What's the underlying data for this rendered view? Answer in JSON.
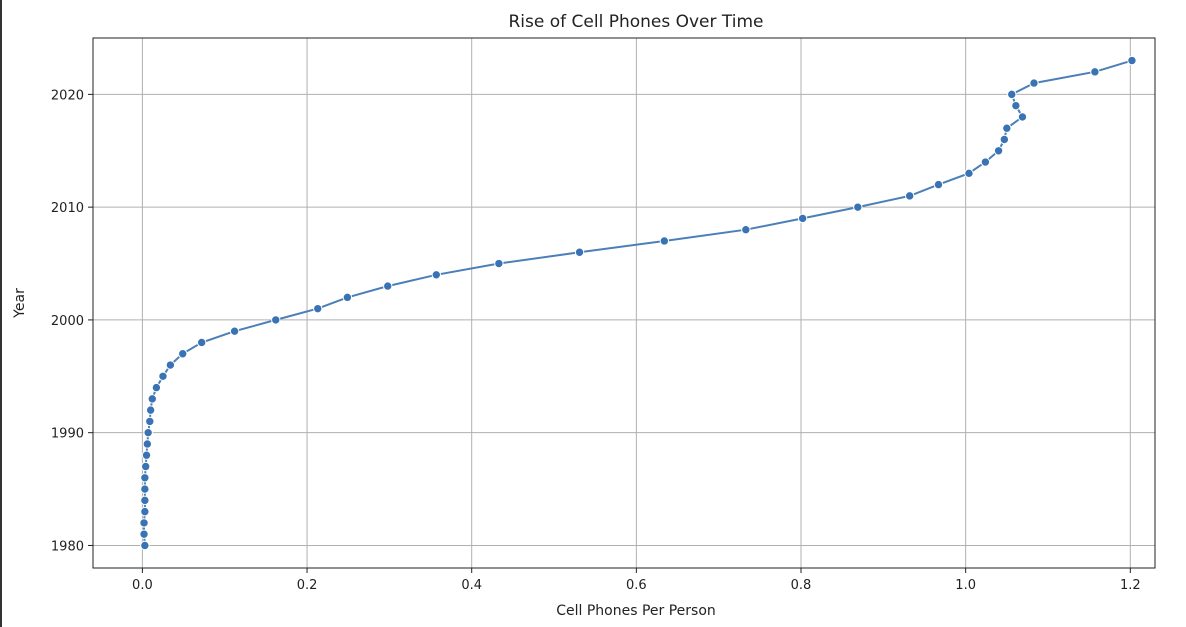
{
  "chart_data": {
    "type": "line",
    "title": "Rise of Cell Phones Over Time",
    "xlabel": "Cell Phones Per Person",
    "ylabel": "Year",
    "xlim": [
      -0.06,
      1.23
    ],
    "ylim": [
      1978,
      2025
    ],
    "x_ticks": [
      "0.0",
      "0.2",
      "0.4",
      "0.6",
      "0.8",
      "1.0",
      "1.2"
    ],
    "y_ticks": [
      "1980",
      "1990",
      "2000",
      "2010",
      "2020"
    ],
    "grid": true,
    "marker": "circle",
    "color": "#4a7fb8",
    "series": [
      {
        "x": [
          0.003,
          0.002,
          0.002,
          0.003,
          0.003,
          0.003,
          0.003,
          0.004,
          0.005,
          0.006,
          0.007,
          0.009,
          0.01,
          0.012,
          0.017,
          0.025,
          0.034,
          0.049,
          0.072,
          0.112,
          0.162,
          0.213,
          0.249,
          0.298,
          0.357,
          0.433,
          0.531,
          0.634,
          0.733,
          0.802,
          0.869,
          0.932,
          0.967,
          1.004,
          1.024,
          1.04,
          1.047,
          1.05,
          1.069,
          1.061,
          1.056,
          1.083,
          1.157,
          1.202
        ],
        "y": [
          1980,
          1981,
          1982,
          1983,
          1984,
          1985,
          1986,
          1987,
          1988,
          1989,
          1990,
          1991,
          1992,
          1993,
          1994,
          1995,
          1996,
          1997,
          1998,
          1999,
          2000,
          2001,
          2002,
          2003,
          2004,
          2005,
          2006,
          2007,
          2008,
          2009,
          2010,
          2011,
          2012,
          2013,
          2014,
          2015,
          2016,
          2017,
          2018,
          2019,
          2020,
          2021,
          2022,
          2023
        ]
      }
    ]
  }
}
